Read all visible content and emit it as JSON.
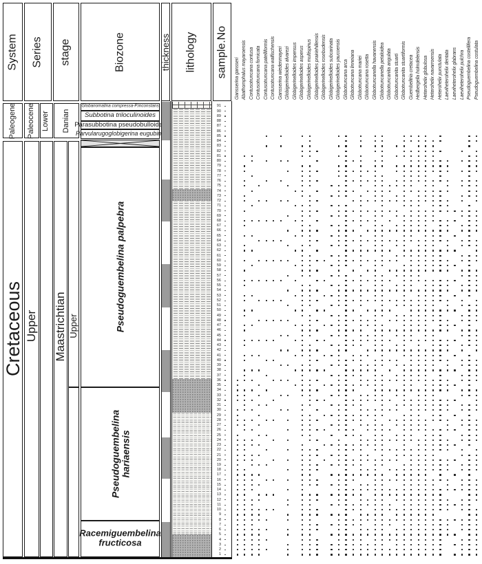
{
  "header": {
    "columns": [
      "System",
      "Series",
      "stage",
      "Biozone",
      "thickness",
      "lithology",
      "sample.No"
    ]
  },
  "paleogene": {
    "system": "Paleogene",
    "series": "Paleocene",
    "subseries": "Lower",
    "stage": "Danian",
    "biozones": [
      {
        "name": "Globanomalina compressa-P.inconstans"
      },
      {
        "name": "Subbotina triloculinoides"
      },
      {
        "name": "Parasubbotina pseudobulloides"
      },
      {
        "name": "Parvularugoglobigerina eugubina"
      }
    ]
  },
  "cretaceous": {
    "system": "Cretaceous",
    "series": "Upper",
    "stage": "Maastrichtian",
    "substage": "Upper",
    "biozones": [
      {
        "line1": "Pseudoguembelina palpebra",
        "line2": ""
      },
      {
        "line1": "Pseudoguembelina",
        "line2": "hariaensis"
      },
      {
        "line1": "Racemiguembelina",
        "line2": "fructicosa"
      }
    ]
  },
  "chart_data": {
    "type": "range-chart",
    "samples": {
      "min": 1,
      "max": 91
    },
    "lithology_units": [
      {
        "pattern": "limestone",
        "top": 148,
        "bottom": 158
      },
      {
        "pattern": "marl",
        "top": 158,
        "bottom": 275
      },
      {
        "pattern": "gray-marl",
        "top": 275,
        "bottom": 292
      },
      {
        "pattern": "marl",
        "top": 292,
        "bottom": 551
      },
      {
        "pattern": "gray-marl",
        "top": 551,
        "bottom": 600
      },
      {
        "pattern": "silty-marl",
        "top": 600,
        "bottom": 777
      },
      {
        "pattern": "gray-marl",
        "top": 777,
        "bottom": 810
      }
    ],
    "thickness_segments": [
      {
        "shade": "dark",
        "top": 148,
        "bottom": 204
      },
      {
        "shade": "light",
        "top": 204,
        "bottom": 261
      },
      {
        "shade": "dark",
        "top": 261,
        "bottom": 322
      },
      {
        "shade": "light",
        "top": 322,
        "bottom": 384
      },
      {
        "shade": "dark",
        "top": 384,
        "bottom": 447
      },
      {
        "shade": "light",
        "top": 447,
        "bottom": 509
      },
      {
        "shade": "dark",
        "top": 509,
        "bottom": 570
      },
      {
        "shade": "light",
        "top": 570,
        "bottom": 636
      },
      {
        "shade": "dark",
        "top": 636,
        "bottom": 696
      },
      {
        "shade": "light",
        "top": 696,
        "bottom": 759
      },
      {
        "shade": "dark",
        "top": 759,
        "bottom": 810
      }
    ],
    "species": [
      {
        "name": "Gansserina gansseri",
        "samples": "1-25,27-30,32-36"
      },
      {
        "name": "Abathomphalus mayaroensis",
        "samples": "1-18,20-24,26-28,30-34,36-38,40-41,43-44,46-47,49-50,52-53,55-56,58,60,62-63,65,67-68,70,72-73,75-76,78-79,81"
      },
      {
        "name": "Contusotruncana contusa",
        "samples": "1-12,14-17,19-21,23-24,26,28,30,32,34,36,38,41,44,47,50,53,56,59,62,65,68,71,74,77,80-81"
      },
      {
        "name": "Contusotruncana fornicata",
        "samples": "1-6,8-10,12-13,15,17,19,21,23,25,27,29,31,33,35,38,41,44,48,52,56,60,64,68,72,75"
      },
      {
        "name": "Contusotruncana patelliformis",
        "samples": "2,4,6,8,10,13,16,19,22,25,28,31,34,37,40,44,48,52,56,60,64,68,72,76,80,83,85"
      },
      {
        "name": "Contusotruncana walfischensis",
        "samples": "10,13,16,20,24,28,32,36,40,44,48,52,56,60,64,68"
      },
      {
        "name": "Gansserina wiedenmayeri",
        "samples": "30,33,36,39,42,45,48,52,56,60,64,68,72,76,80,83,85"
      },
      {
        "name": "Globigerinelloides alvarezi",
        "samples": "1-3,5-6,8-9,11-12,14,16,18,20,22,24,26,28,30,33,36,39,42,45,48,51,54,57,60,63,66,69,72,75,78,80"
      },
      {
        "name": "Globigerinelloides impensus",
        "samples": "35,38,41,44,47,50,53,56,59,62,65,68,71,74"
      },
      {
        "name": "Globigerinelloides asperus",
        "samples": "1-23,25-31,33-39,41-47,49-55,57-63,65-71,73-79,81-83,85"
      },
      {
        "name": "Globigerinelloides multispinus",
        "samples": "1-13,15-22,24-29,31-36,38-43,45-49,51-55,57-61,63-67,69-73,75-79,81-85"
      },
      {
        "name": "Globigerinelloides prairiehillensis",
        "samples": "1-4,6-7,9-10,12-13,15-16,18-19,21-22,24,26,28,30,32,34,36,38,40,42,44,46,48,50,52,54,56,58,60,62,64,66,68,70,72,74,76,78,80,82"
      },
      {
        "name": "Globigerinelloides rosebudensis",
        "samples": "20,23,26,29,32,35,38,41,44,47,50,53,56,60"
      },
      {
        "name": "Globigerinelloides subcarinata",
        "samples": "1-3,5,7,9,11,13,15,17,19,21,23,25,27,29,31,33,35,37,39,41,43,45,47,49,51,53,55,57,59,61,63,65,67,69,71,73,75"
      },
      {
        "name": "Globigerinelloides yaucoensis",
        "samples": "1-9,11-17,19-24,26-31,33-37,39-43,45-49,51-55,57-61,63-67,69-71,73-75,77-79,81,83,85"
      },
      {
        "name": "Globotruncana arca",
        "samples": "1-23,25-40,42-57,59-71,73-85"
      },
      {
        "name": "Globotruncana linneiana",
        "samples": "1-5,7-8,10-11,13-14,16-17,19-20,22-23,25-26,28-29,31-32,34-35,37-38,40-41,43-44,46,48,50,52,54,56,58,60,62,64,66,68,70,72,74,76,78,80"
      },
      {
        "name": "Globotruncana mariei",
        "samples": "1-15,17-25,27-33,35-41,43-49,51-57,59-65,67-73,75-81,83-85"
      },
      {
        "name": "Globotruncana rosetta",
        "samples": "1-3,5-6,8-9,11-12,14-15,17-18,20-21,23-24,26-27,29-30,32-33,35-36,38-39,41-42,44-45,47-48,50,52,54,56,58,60,62,64,66,68,70,72,74,76,78"
      },
      {
        "name": "Globotruncanella havanensis",
        "samples": "1-20,22-30,32-40,42-50,52-60,62-70,72-80,82-85"
      },
      {
        "name": "Globotruncanella petaloidea",
        "samples": "1-17,19-27,29-37,39-47,49-57,59-67,69-77,79-85"
      },
      {
        "name": "Globotruncanita angulata",
        "samples": "1-2,4-5,7-8,10-11,13-14,16,18,20,22,24,26,28,30,32,34,36,38,40,42,44,46,48,50,52,54,56,58,60,62,64,66,68,70,72,74-75"
      },
      {
        "name": "Globotruncanita stuarti",
        "samples": "1-6,8-10,12-14,16-18,20-22,24-25,27-28,30-31,33-34,36-37,39-40,42-43,45-46,48-49,51-52,54-55,57-58,60-61,63-64,66-67,69-70,72-73,75-76,78-79,81,83"
      },
      {
        "name": "Globotruncanita stuartiformis",
        "samples": "1-19,21-29,31-39,41-49,51-59,61-69,71-79,81-85"
      },
      {
        "name": "Guembelitria cretacea",
        "samples": "1-22,24-32,34-42,44-52,54-62,64-72,74-82,84-85"
      },
      {
        "name": "Hedbergella holmdelensis",
        "samples": "1-24,26-34,36-44,46-54,56-64,66-74,76-85"
      },
      {
        "name": "Heterohelix globulosa",
        "samples": "1-28,30-42,44-56,58-70,72-85"
      },
      {
        "name": "Heterohelix navarroensis",
        "samples": "1-16,18-26,28-36,38-46,48-56,58-66,68-76,78-84"
      },
      {
        "name": "Heterohelix punctulata",
        "samples": "1-8,10-14,16-20,22-26,28-32,34-38,40-44,46-50,52-56,58-62,64-68,70-74,76-80,82,84-85"
      },
      {
        "name": "Laeviheterohelix dentata",
        "samples": "5-8,10-12,14-16,18-20,22-24,26-28,30-32,34-36,38-40,42-44,46-48,50-52,54-56,58-60,62-64,66-68,70-72,74-76,78-80"
      },
      {
        "name": "Laeviheterohelix glabrans",
        "samples": "1,3,5,8,11,14,17,20,23,26,29,32,35,38,41,44,47,50,53,56,59,62,65,68,70"
      },
      {
        "name": "Laeviheterohelix pulchra",
        "samples": "1-4,6-8,10-12,14-16,18-19,21-22,24-25,27-28,30-31,33-34,36-37,39-40,42-43,45-46,48-49,51-52,54-55,57-58,60-61,63-64,66-67,69-70,72-73,75-76,78,80,82"
      },
      {
        "name": "Pseudoguembelina costellifera",
        "samples": "1-21,23-31,33-41,43-51,53-61,63-71,73-81,83-85"
      },
      {
        "name": "Pseudoguembelina costulata",
        "samples": "1-10,12-16,18-22,24-28,30-34,36-40,42-46,48-52,54-58,60-64,66-70,72-76,78-82,84-85"
      }
    ]
  }
}
